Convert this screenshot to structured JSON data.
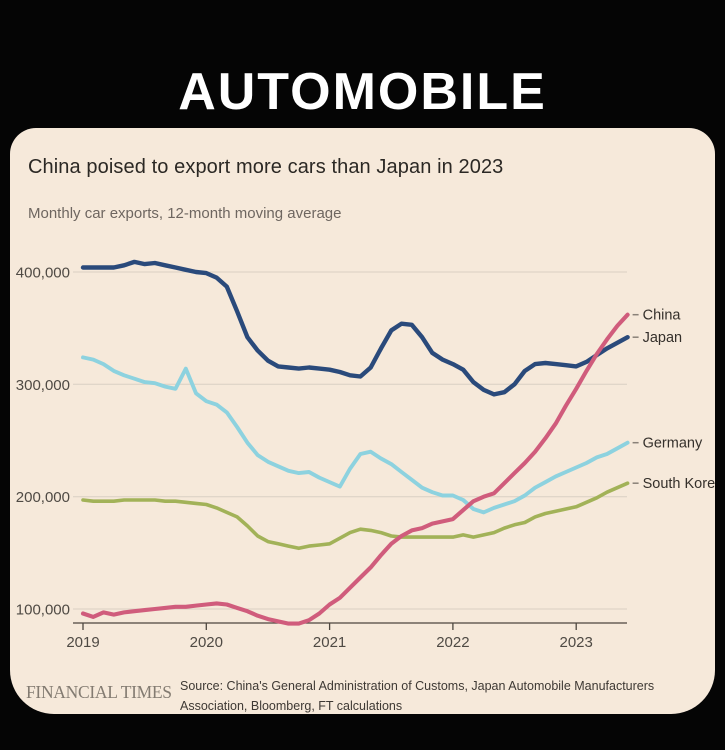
{
  "page": {
    "background_color": "#050505",
    "headline": "AUTOMOBILE",
    "headline_color": "#ffffff"
  },
  "card": {
    "background_color": "#f6e9da",
    "title": "China poised to export more cars than Japan in 2023",
    "subtitle": "Monthly car exports, 12-month moving average",
    "footer": {
      "brand": "FINANCIAL TIMES",
      "source_line1": "Source: China's General Administration of Customs, Japan Automobile Manufacturers",
      "source_line2": "Association, Bloomberg, FT calculations"
    }
  },
  "chart_data": {
    "type": "line",
    "title": "China poised to export more cars than Japan in 2023",
    "subtitle": "Monthly car exports, 12-month moving average",
    "x_start": "2019-01",
    "x_end": "2023-06",
    "x_step_months": 1,
    "x_tick_labels": [
      "2019",
      "2020",
      "2021",
      "2022",
      "2023"
    ],
    "y_ticks": [
      100000,
      200000,
      300000,
      400000
    ],
    "y_tick_labels": [
      "100,000",
      "200,000",
      "300,000",
      "400,000"
    ],
    "ylim": [
      78000,
      422000
    ],
    "grid": "horizontal",
    "legend_position": "right-end-labels",
    "gridline_color": "#d9d0c3",
    "axis_color": "#4d463f",
    "series": [
      {
        "name": "China",
        "color": "#d05c7c",
        "values": [
          96000,
          93000,
          97000,
          95000,
          97000,
          98000,
          99000,
          100000,
          101000,
          102000,
          102000,
          103000,
          104000,
          105000,
          104000,
          101000,
          98000,
          94000,
          91000,
          89000,
          87000,
          87000,
          90000,
          96000,
          104000,
          110000,
          119000,
          128000,
          137000,
          148000,
          158000,
          165000,
          170000,
          172000,
          176000,
          178000,
          180000,
          188000,
          196000,
          200000,
          203000,
          212000,
          221000,
          230000,
          240000,
          252000,
          265000,
          281000,
          296000,
          312000,
          327000,
          340000,
          352000,
          362000
        ]
      },
      {
        "name": "Japan",
        "color": "#2a4a7b",
        "values": [
          404000,
          404000,
          404000,
          404000,
          406000,
          409000,
          407000,
          408000,
          406000,
          404000,
          402000,
          400000,
          399000,
          395000,
          387000,
          365000,
          342000,
          330000,
          321000,
          316000,
          315000,
          314000,
          315000,
          314000,
          313000,
          311000,
          308000,
          307000,
          315000,
          332000,
          348000,
          354000,
          353000,
          342000,
          328000,
          322000,
          318000,
          313000,
          302000,
          295000,
          291000,
          293000,
          300000,
          312000,
          318000,
          319000,
          318000,
          317000,
          316000,
          320000,
          326000,
          332000,
          337000,
          342000
        ]
      },
      {
        "name": "Germany",
        "color": "#8dd2df",
        "values": [
          324000,
          322000,
          318000,
          312000,
          308000,
          305000,
          302000,
          301000,
          298000,
          296000,
          314000,
          292000,
          285000,
          282000,
          275000,
          262000,
          248000,
          237000,
          231000,
          227000,
          223000,
          221000,
          222000,
          217000,
          213000,
          209000,
          225000,
          238000,
          240000,
          234000,
          229000,
          222000,
          215000,
          208000,
          204000,
          201000,
          201000,
          197000,
          189000,
          186000,
          190000,
          193000,
          196000,
          201000,
          208000,
          213000,
          218000,
          222000,
          226000,
          230000,
          235000,
          238000,
          243000,
          248000
        ]
      },
      {
        "name": "South Korea",
        "color": "#a2b258",
        "values": [
          197000,
          196000,
          196000,
          196000,
          197000,
          197000,
          197000,
          197000,
          196000,
          196000,
          195000,
          194000,
          193000,
          190000,
          186000,
          182000,
          174000,
          165000,
          160000,
          158000,
          156000,
          154000,
          156000,
          157000,
          158000,
          163000,
          168000,
          171000,
          170000,
          168000,
          165000,
          164000,
          164000,
          164000,
          164000,
          164000,
          164000,
          166000,
          164000,
          166000,
          168000,
          172000,
          175000,
          177000,
          182000,
          185000,
          187000,
          189000,
          191000,
          195000,
          199000,
          204000,
          208000,
          212000
        ]
      }
    ]
  }
}
